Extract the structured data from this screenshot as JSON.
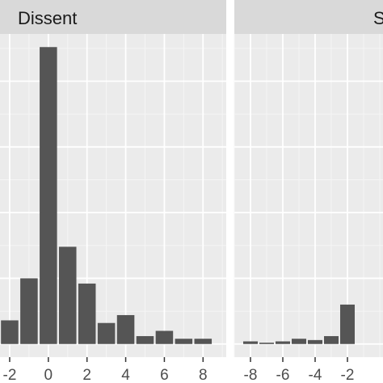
{
  "chart_data": [
    {
      "type": "bar",
      "facet_title": "Dissent",
      "x": [
        -2,
        -1,
        0,
        1,
        2,
        3,
        4,
        5,
        6,
        7,
        8
      ],
      "values": [
        9,
        25,
        113,
        37,
        23,
        8,
        11,
        3,
        5,
        2,
        2
      ],
      "xlim": [
        -2.5,
        9.2
      ],
      "ylim": [
        -5,
        118
      ],
      "x_ticks": [
        -2,
        0,
        2,
        4,
        6,
        8
      ],
      "x_tick_labels": [
        "-2",
        "0",
        "2",
        "4",
        "6",
        "8"
      ],
      "bar_color": "#555555",
      "grid": true
    },
    {
      "type": "bar",
      "facet_title": "S",
      "x": [
        -8,
        -7,
        -6,
        -5,
        -4,
        -3,
        -2
      ],
      "values": [
        1,
        0.5,
        1,
        2,
        1.5,
        3,
        15
      ],
      "xlim": [
        -9,
        0.2
      ],
      "ylim": [
        -5,
        118
      ],
      "x_ticks": [
        -8,
        -6,
        -4,
        -2
      ],
      "x_tick_labels": [
        "-8",
        "-6",
        "-4",
        "-2"
      ],
      "bar_color": "#555555",
      "grid": true
    }
  ],
  "theme": {
    "panel_background": "#ebebeb",
    "strip_background": "#d9d9d9",
    "grid_major": "#ffffff",
    "grid_minor": "#f5f5f5",
    "tick_color": "#333333"
  }
}
